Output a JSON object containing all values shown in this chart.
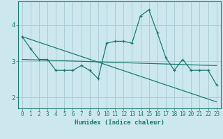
{
  "title": "",
  "xlabel": "Humidex (Indice chaleur)",
  "ylabel": "",
  "background_color": "#cce8ee",
  "grid_color": "#aacdd6",
  "line_color": "#1a7a6e",
  "axis_color": "#1a7a6e",
  "xlim": [
    -0.5,
    23.5
  ],
  "ylim": [
    1.7,
    4.65
  ],
  "yticks": [
    2,
    3,
    4
  ],
  "xticks": [
    0,
    1,
    2,
    3,
    4,
    5,
    6,
    7,
    8,
    9,
    10,
    11,
    12,
    13,
    14,
    15,
    16,
    17,
    18,
    19,
    20,
    21,
    22,
    23
  ],
  "series1_x": [
    0,
    1,
    2,
    3,
    4,
    5,
    6,
    7,
    8,
    9,
    10,
    11,
    12,
    13,
    14,
    15,
    16,
    17,
    18,
    19,
    20,
    21,
    22,
    23
  ],
  "series1_y": [
    3.68,
    3.35,
    3.05,
    3.05,
    2.75,
    2.75,
    2.75,
    2.88,
    2.75,
    2.52,
    3.5,
    3.55,
    3.55,
    3.5,
    4.25,
    4.42,
    3.78,
    3.1,
    2.75,
    3.05,
    2.75,
    2.75,
    2.75,
    2.35
  ],
  "series2_x": [
    0,
    23
  ],
  "series2_y": [
    3.68,
    1.88
  ],
  "series3_x": [
    0,
    23
  ],
  "series3_y": [
    3.05,
    2.88
  ]
}
